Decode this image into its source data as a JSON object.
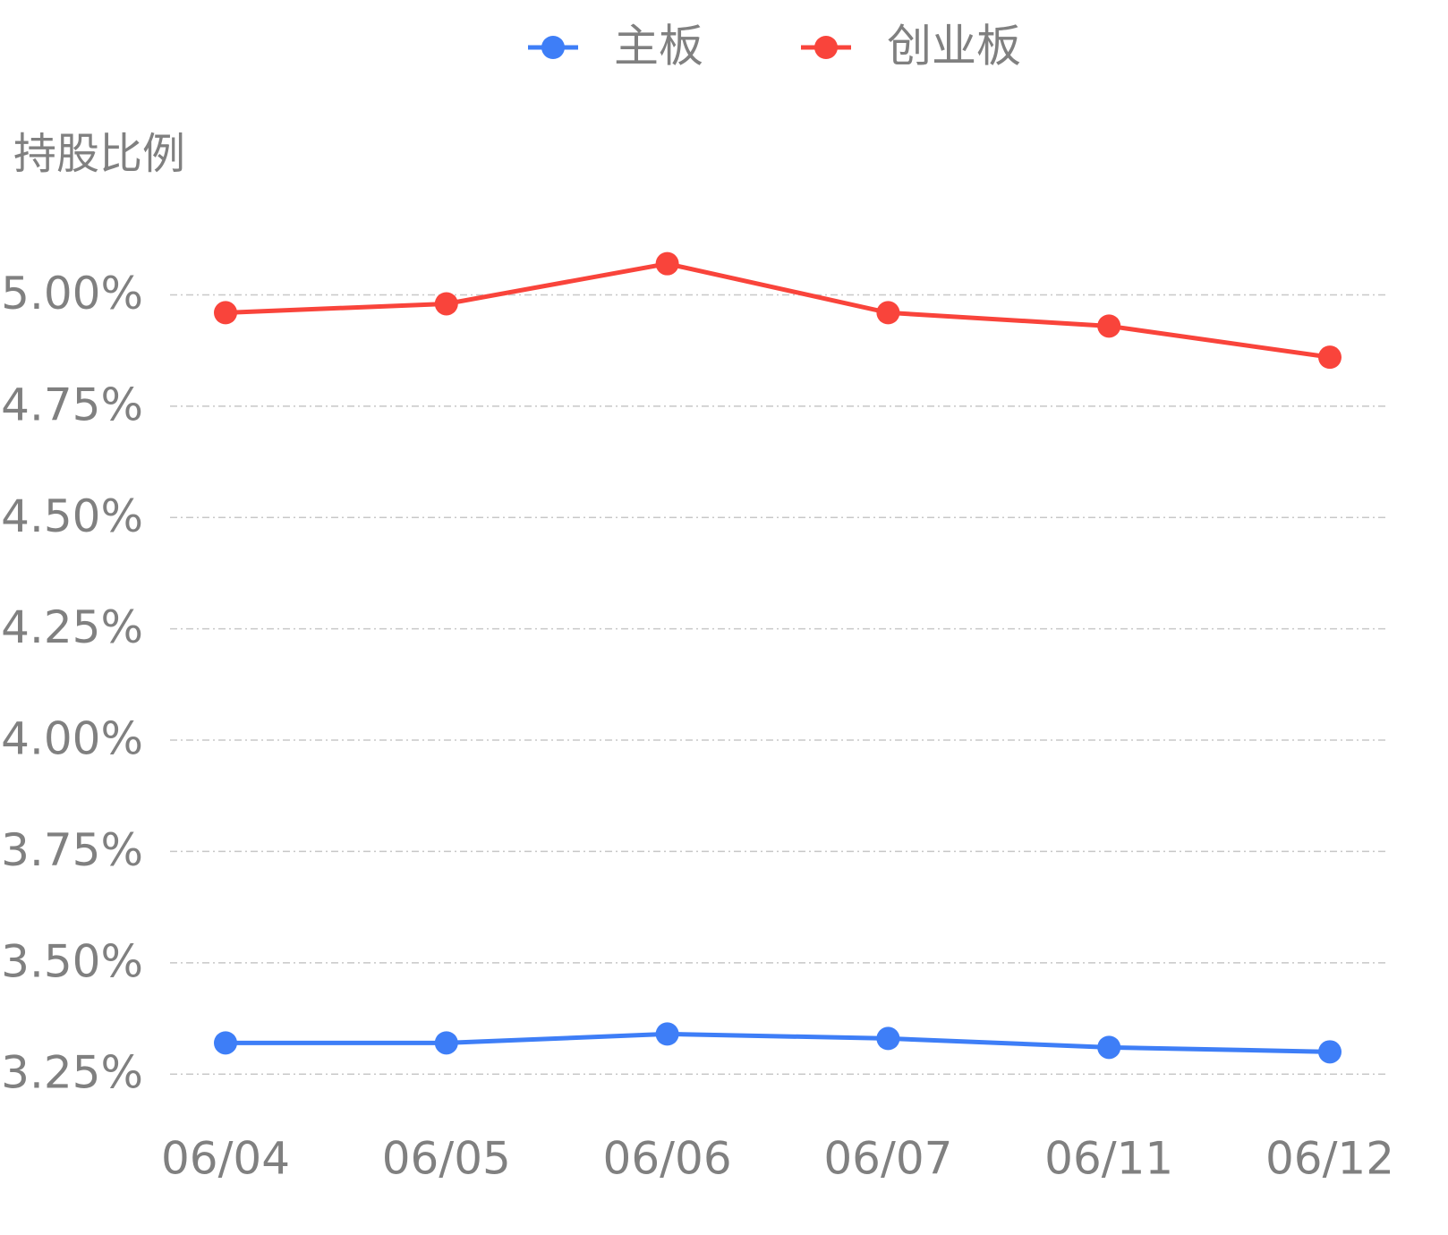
{
  "chart_data": {
    "type": "line",
    "y_label": "持股比例",
    "categories": [
      "06/04",
      "06/05",
      "06/06",
      "06/07",
      "06/11",
      "06/12"
    ],
    "series": [
      {
        "name": "主板",
        "color": "#3e7ef7",
        "values": [
          3.32,
          3.32,
          3.34,
          3.33,
          3.31,
          3.3
        ]
      },
      {
        "name": "创业板",
        "color": "#f9443b",
        "values": [
          4.96,
          4.98,
          5.07,
          4.96,
          4.93,
          4.86
        ]
      }
    ],
    "ylim": [
      3.17,
      5.2
    ],
    "yticks": [
      {
        "value": 3.25,
        "label": "3.25%"
      },
      {
        "value": 3.5,
        "label": "3.50%"
      },
      {
        "value": 3.75,
        "label": "3.75%"
      },
      {
        "value": 4,
        "label": "4.00%"
      },
      {
        "value": 4.25,
        "label": "4.25%"
      },
      {
        "value": 4.5,
        "label": "4.50%"
      },
      {
        "value": 4.75,
        "label": "4.75%"
      },
      {
        "value": 5,
        "label": "5.00%"
      }
    ],
    "grid": true,
    "legend": "top"
  }
}
